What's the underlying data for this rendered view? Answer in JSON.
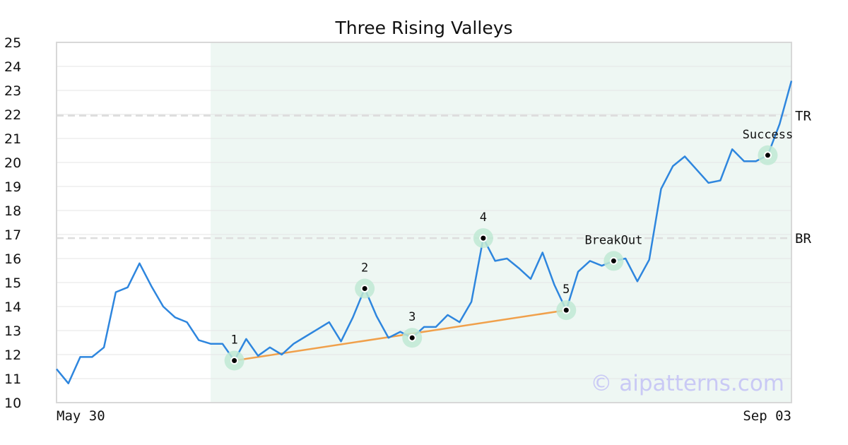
{
  "chart_data": {
    "type": "line",
    "title": "Three Rising Valleys",
    "ylim": [
      10,
      25
    ],
    "yticks": [
      10,
      11,
      12,
      13,
      14,
      15,
      16,
      17,
      18,
      19,
      20,
      21,
      22,
      23,
      24,
      25
    ],
    "x_tick_labels": {
      "start": "May 30",
      "end": "Sep 03"
    },
    "grid": "horizontal",
    "colors": {
      "price": "#2e86de",
      "trendline": "#f0a04b",
      "pattern_zone": "#eef7f3",
      "point_halo": "#bfe9d4",
      "level_line": "#dddddd",
      "frame": "#d8d8d8"
    },
    "series": [
      {
        "values": [
          11.4,
          10.8,
          11.9,
          11.9,
          12.3,
          14.6,
          14.8,
          15.8,
          14.85,
          14.0,
          13.55,
          13.35,
          12.6,
          12.45,
          12.45,
          11.75,
          12.65,
          11.95,
          12.3,
          12.0,
          12.45,
          12.75,
          13.05,
          13.35,
          12.55,
          13.55,
          14.75,
          13.6,
          12.7,
          12.95,
          12.7,
          13.15,
          13.15,
          13.65,
          13.35,
          14.2,
          16.85,
          15.9,
          16.0,
          15.6,
          15.15,
          16.25,
          14.9,
          13.85,
          15.45,
          15.9,
          15.7,
          15.9,
          16.0,
          15.05,
          15.95,
          18.9,
          19.85,
          20.25,
          19.7,
          19.15,
          19.25,
          20.55,
          20.05,
          20.05,
          20.3,
          21.6,
          23.4
        ]
      }
    ],
    "pattern_zone": {
      "start_index": 13,
      "end_index": 62
    },
    "levels": [
      {
        "label": "TR",
        "value": 21.95
      },
      {
        "label": "BR",
        "value": 16.85
      }
    ],
    "points": [
      {
        "label": "1",
        "index": 15,
        "value": 11.75,
        "label_pos": "above"
      },
      {
        "label": "2",
        "index": 26,
        "value": 14.75,
        "label_pos": "above"
      },
      {
        "label": "3",
        "index": 30,
        "value": 12.7,
        "label_pos": "above"
      },
      {
        "label": "4",
        "index": 36,
        "value": 16.85,
        "label_pos": "above"
      },
      {
        "label": "5",
        "index": 43,
        "value": 13.85,
        "label_pos": "above"
      },
      {
        "label": "BreakOut",
        "index": 47,
        "value": 15.9,
        "label_pos": "above"
      },
      {
        "label": "Success",
        "index": 60,
        "value": 20.3,
        "label_pos": "above"
      }
    ],
    "trendline": {
      "from_index": 15,
      "from_value": 11.75,
      "to_index": 43,
      "to_value": 13.85
    },
    "watermark": "© aipatterns.com"
  }
}
